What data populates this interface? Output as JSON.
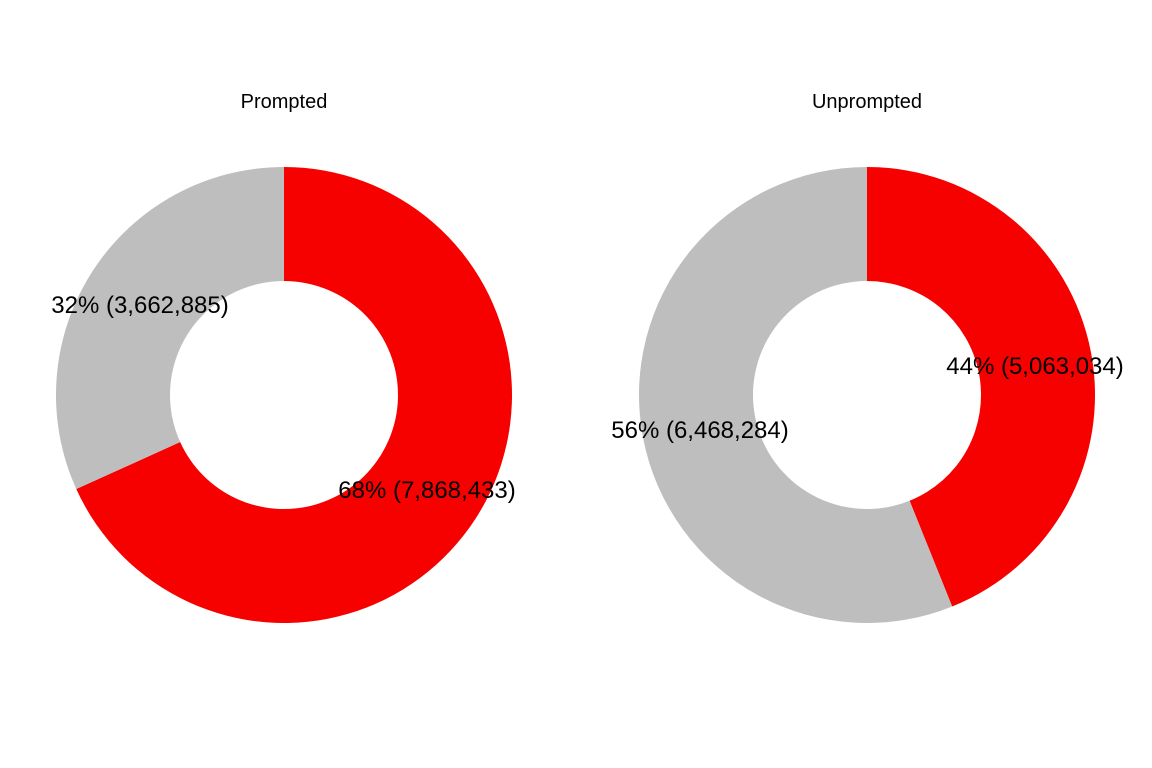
{
  "chart_data": [
    {
      "type": "pie",
      "variant": "donut",
      "title": "Prompted",
      "slices": [
        {
          "value": 7868433,
          "percent": 68,
          "label": "68% (7,868,433)",
          "color": "#F70000"
        },
        {
          "value": 3662885,
          "percent": 32,
          "label": "32% (3,662,885)",
          "color": "#BEBEBE"
        }
      ]
    },
    {
      "type": "pie",
      "variant": "donut",
      "title": "Unprompted",
      "slices": [
        {
          "value": 5063034,
          "percent": 44,
          "label": "44% (5,063,034)",
          "color": "#F70000"
        },
        {
          "value": 6468284,
          "percent": 56,
          "label": "56% (6,468,284)",
          "color": "#BEBEBE"
        }
      ]
    }
  ]
}
